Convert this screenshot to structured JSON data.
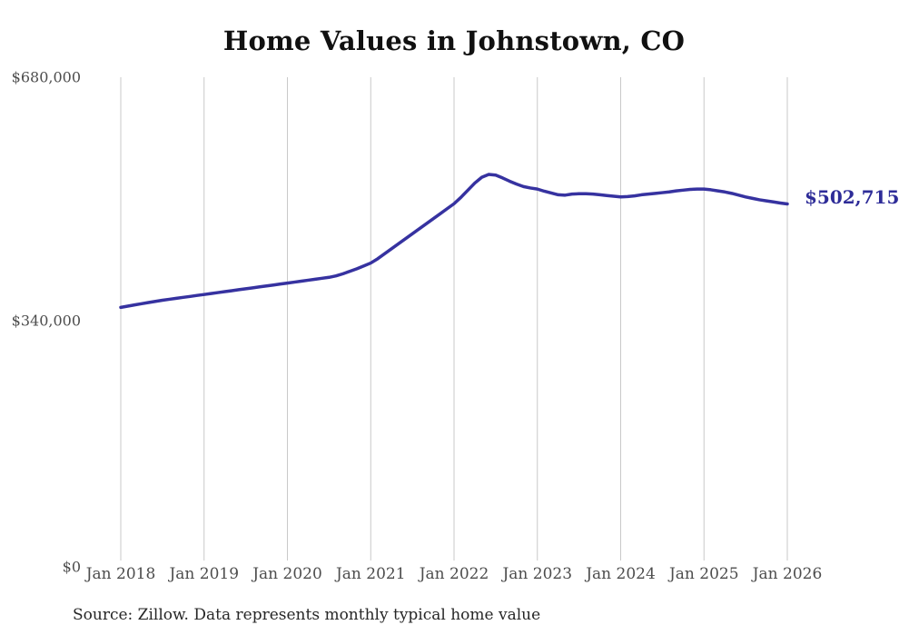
{
  "chart": {
    "title": "Home Values in Johnstown, CO",
    "source": "Source: Zillow. Data represents monthly typical home value",
    "end_label": "$502,715",
    "latest_value": 502715,
    "line_color": "#3632a0",
    "end_label_color": "#2e2c98",
    "grid_color": "#c9c9c9",
    "axis_label_color": "#4d4d4d",
    "title_color": "#111111",
    "source_color": "#262626"
  },
  "chart_data": {
    "type": "line",
    "title": "Home Values in Johnstown, CO",
    "xlabel": "",
    "ylabel": "",
    "ylim": [
      0,
      680000
    ],
    "grid": "vertical-only",
    "legend": false,
    "x_tick_labels": [
      "Jan 2018",
      "Jan 2019",
      "Jan 2020",
      "Jan 2021",
      "Jan 2022",
      "Jan 2023",
      "Jan 2024",
      "Jan 2025",
      "Jan 2026"
    ],
    "y_ticks": [
      {
        "value": 0,
        "label": "$0"
      },
      {
        "value": 340000,
        "label": "$340,000"
      },
      {
        "value": 680000,
        "label": "$680,000"
      }
    ],
    "annotation": {
      "text": "$502,715",
      "x": "2026-01",
      "value": 502715
    },
    "series": [
      {
        "name": "Monthly typical home value",
        "x": [
          "2018-01",
          "2018-02",
          "2018-03",
          "2018-04",
          "2018-05",
          "2018-06",
          "2018-07",
          "2018-08",
          "2018-09",
          "2018-10",
          "2018-11",
          "2018-12",
          "2019-01",
          "2019-02",
          "2019-03",
          "2019-04",
          "2019-05",
          "2019-06",
          "2019-07",
          "2019-08",
          "2019-09",
          "2019-10",
          "2019-11",
          "2019-12",
          "2020-01",
          "2020-02",
          "2020-03",
          "2020-04",
          "2020-05",
          "2020-06",
          "2020-07",
          "2020-08",
          "2020-09",
          "2020-10",
          "2020-11",
          "2020-12",
          "2021-01",
          "2021-02",
          "2021-03",
          "2021-04",
          "2021-05",
          "2021-06",
          "2021-07",
          "2021-08",
          "2021-09",
          "2021-10",
          "2021-11",
          "2021-12",
          "2022-01",
          "2022-02",
          "2022-03",
          "2022-04",
          "2022-05",
          "2022-06",
          "2022-07",
          "2022-08",
          "2022-09",
          "2022-10",
          "2022-11",
          "2022-12",
          "2023-01",
          "2023-02",
          "2023-03",
          "2023-04",
          "2023-05",
          "2023-06",
          "2023-07",
          "2023-08",
          "2023-09",
          "2023-10",
          "2023-11",
          "2023-12",
          "2024-01",
          "2024-02",
          "2024-03",
          "2024-04",
          "2024-05",
          "2024-06",
          "2024-07",
          "2024-08",
          "2024-09",
          "2024-10",
          "2024-11",
          "2024-12",
          "2025-01",
          "2025-02",
          "2025-03",
          "2025-04",
          "2025-05",
          "2025-06",
          "2025-07",
          "2025-08",
          "2025-09",
          "2025-10",
          "2025-11",
          "2025-12",
          "2026-01"
        ],
        "values": [
          358000,
          359700,
          361400,
          363100,
          364800,
          366400,
          368000,
          369300,
          370700,
          372000,
          373300,
          374700,
          376000,
          377300,
          378700,
          380000,
          381300,
          382700,
          384000,
          385300,
          386700,
          388000,
          389300,
          390700,
          392000,
          393300,
          394700,
          396000,
          397300,
          398700,
          400000,
          402000,
          405000,
          408500,
          412000,
          416000,
          420000,
          426000,
          433000,
          440000,
          447000,
          454000,
          461000,
          468000,
          475000,
          482000,
          489000,
          496000,
          503000,
          512000,
          522000,
          532000,
          540000,
          544000,
          543000,
          539000,
          534500,
          530500,
          527000,
          525000,
          523500,
          520500,
          518000,
          515500,
          515000,
          516500,
          517000,
          517000,
          516500,
          515500,
          514500,
          513500,
          512500,
          513000,
          514000,
          515500,
          516500,
          517500,
          518500,
          519500,
          521000,
          522000,
          523000,
          523500,
          523500,
          522500,
          521000,
          519500,
          517500,
          515000,
          512500,
          510500,
          508500,
          507000,
          505500,
          504000,
          502715
        ]
      }
    ]
  }
}
